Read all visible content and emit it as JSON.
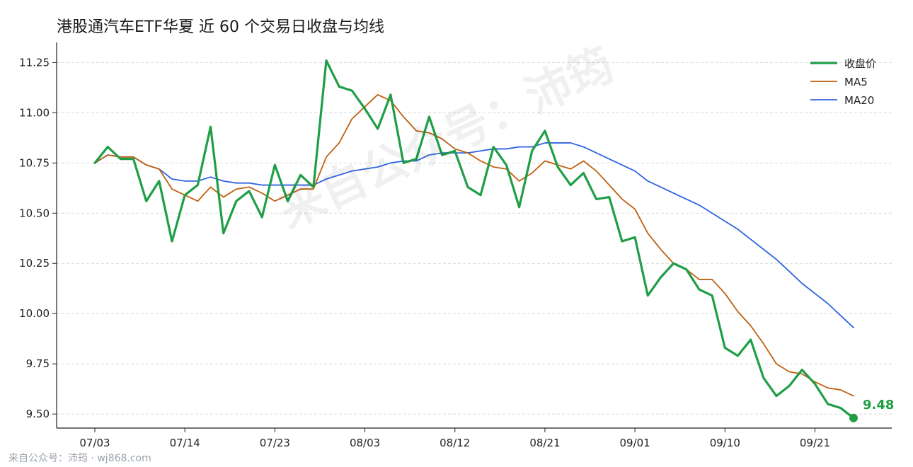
{
  "chart_data": {
    "type": "line",
    "title": "港股通汽车ETF华夏 近 60 个交易日收盘与均线",
    "xlabel": "",
    "ylabel": "",
    "ylim": [
      9.43,
      11.35
    ],
    "yticks": [
      "9.50",
      "9.75",
      "10.00",
      "10.25",
      "10.50",
      "10.75",
      "11.00",
      "11.25"
    ],
    "ytick_values": [
      9.5,
      9.75,
      10.0,
      10.25,
      10.5,
      10.75,
      11.0,
      11.25
    ],
    "xtick_labels": [
      "07/03",
      "07/14",
      "07/23",
      "08/03",
      "08/12",
      "08/21",
      "09/01",
      "09/10",
      "09/21"
    ],
    "xtick_indices": [
      0,
      7,
      14,
      21,
      28,
      35,
      42,
      49,
      56
    ],
    "x_count": 60,
    "grid": "y-dashed",
    "legend_position": "top-right",
    "series": [
      {
        "name": "收盘价",
        "color": "#1f9e46",
        "values": [
          10.75,
          10.83,
          10.77,
          10.77,
          10.56,
          10.66,
          10.36,
          10.59,
          10.64,
          10.93,
          10.4,
          10.56,
          10.61,
          10.48,
          10.74,
          10.56,
          10.69,
          10.63,
          11.26,
          11.13,
          11.11,
          11.02,
          10.92,
          11.09,
          10.75,
          10.77,
          10.98,
          10.79,
          10.81,
          10.63,
          10.59,
          10.83,
          10.74,
          10.53,
          10.81,
          10.91,
          10.73,
          10.64,
          10.7,
          10.57,
          10.58,
          10.36,
          10.38,
          10.09,
          10.18,
          10.25,
          10.22,
          10.12,
          10.09,
          9.83,
          9.79,
          9.87,
          9.68,
          9.59,
          9.64,
          9.72,
          9.65,
          9.55,
          9.53,
          9.48
        ]
      },
      {
        "name": "MA5",
        "color": "#c0600f",
        "values": [
          10.75,
          10.79,
          10.78,
          10.78,
          10.74,
          10.72,
          10.62,
          10.59,
          10.56,
          10.63,
          10.58,
          10.62,
          10.63,
          10.6,
          10.56,
          10.59,
          10.62,
          10.62,
          10.78,
          10.85,
          10.97,
          11.03,
          11.09,
          11.06,
          10.98,
          10.91,
          10.9,
          10.87,
          10.82,
          10.8,
          10.76,
          10.73,
          10.72,
          10.66,
          10.7,
          10.76,
          10.74,
          10.72,
          10.76,
          10.71,
          10.64,
          10.57,
          10.52,
          10.4,
          10.32,
          10.25,
          10.22,
          10.17,
          10.17,
          10.1,
          10.01,
          9.94,
          9.85,
          9.75,
          9.71,
          9.7,
          9.66,
          9.63,
          9.62,
          9.59
        ]
      },
      {
        "name": "MA20",
        "color": "#2f64e0",
        "values": [
          10.75,
          10.79,
          10.78,
          10.78,
          10.74,
          10.72,
          10.67,
          10.66,
          10.66,
          10.68,
          10.66,
          10.65,
          10.65,
          10.64,
          10.64,
          10.64,
          10.64,
          10.64,
          10.67,
          10.69,
          10.71,
          10.72,
          10.73,
          10.75,
          10.76,
          10.76,
          10.79,
          10.8,
          10.8,
          10.8,
          10.81,
          10.82,
          10.82,
          10.83,
          10.83,
          10.85,
          10.85,
          10.85,
          10.83,
          10.8,
          10.77,
          10.74,
          10.71,
          10.66,
          10.63,
          10.6,
          10.57,
          10.54,
          10.5,
          10.46,
          10.42,
          10.37,
          10.32,
          10.27,
          10.21,
          10.15,
          10.1,
          10.05,
          9.99,
          9.93
        ]
      }
    ],
    "last_value_label": "9.48",
    "footer": "来自公众号：沛筠 · wj868.com",
    "watermark": "来自公众号：沛筠"
  }
}
